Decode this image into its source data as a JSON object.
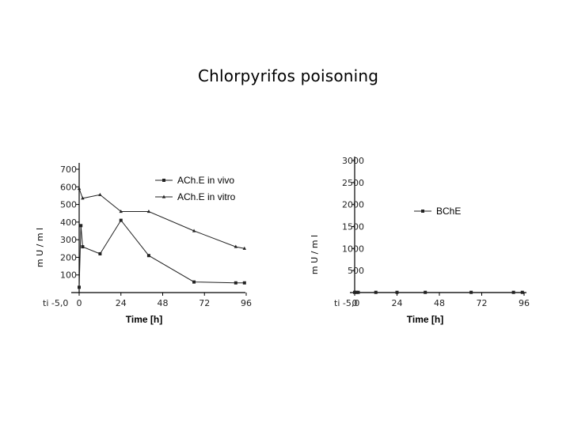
{
  "page": {
    "title": "Chlorpyrifos poisoning"
  },
  "chart_data": [
    {
      "type": "line",
      "xlabel": "Time [h]",
      "ylabel": "m U / m l",
      "x_ticks": [
        0,
        24,
        48,
        72,
        96
      ],
      "x_tick_labels": [
        "0",
        "24",
        "48",
        "72",
        "96"
      ],
      "x_extra_label": "ti -5,0",
      "y_ticks": [
        100,
        200,
        300,
        400,
        500,
        600,
        700
      ],
      "ylim": [
        0,
        750
      ],
      "xlim": [
        -5,
        96
      ],
      "legend_placement": "top-right",
      "series": [
        {
          "name": "ACh.E in vivo",
          "marker": "square",
          "x": [
            0,
            1,
            2,
            12,
            24,
            40,
            66,
            90,
            95
          ],
          "y": [
            30,
            380,
            260,
            220,
            410,
            210,
            60,
            55,
            55
          ]
        },
        {
          "name": "ACh.E in vitro",
          "marker": "triangle",
          "x": [
            0,
            2,
            12,
            24,
            40,
            66,
            90,
            95
          ],
          "y": [
            590,
            535,
            555,
            460,
            460,
            350,
            260,
            250
          ]
        }
      ]
    },
    {
      "type": "line",
      "xlabel": "Time [h]",
      "ylabel": "m U / m l",
      "x_ticks": [
        0,
        24,
        48,
        72,
        96
      ],
      "x_tick_labels": [
        "0",
        "24",
        "48",
        "72",
        "96"
      ],
      "x_extra_label": "ti -5,0",
      "y_ticks": [
        500,
        1000,
        1500,
        2000,
        2500,
        3000
      ],
      "ylim": [
        0,
        3200
      ],
      "xlim": [
        -5,
        96
      ],
      "legend_placement": "top-right",
      "series": [
        {
          "name": "BChE",
          "marker": "square",
          "x": [
            0,
            1,
            2,
            12,
            24,
            40,
            66,
            90,
            95
          ],
          "y": [
            5,
            5,
            5,
            5,
            5,
            5,
            5,
            5,
            5
          ]
        }
      ]
    }
  ]
}
